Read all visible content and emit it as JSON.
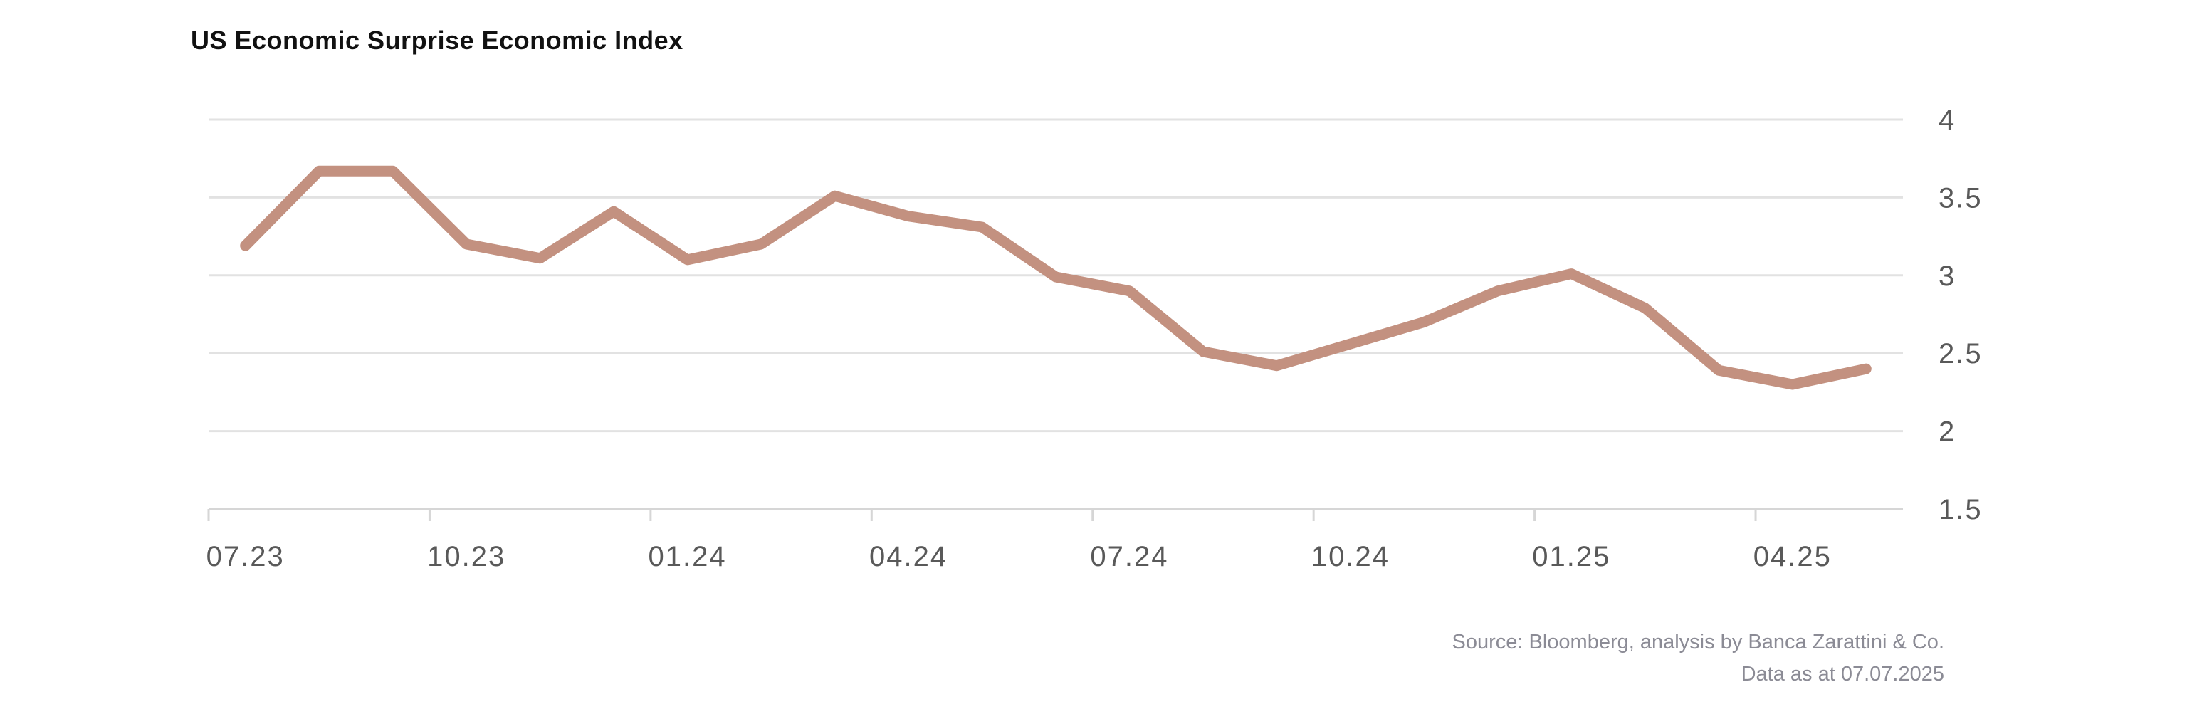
{
  "title": "US Economic Surprise Economic Index",
  "source": {
    "line1": "Source: Bloomberg, analysis by Banca Zarattini & Co.",
    "line2": "Data as at 07.07.2025"
  },
  "colors": {
    "line": "#C39180",
    "gridline": "#E2E2E2",
    "axis_line": "#D6D6D6",
    "tick_mark": "#D6D6D6",
    "axis_label": "#595959",
    "title_text": "#111111",
    "source_text": "#8B8B95",
    "background": "#FFFFFF"
  },
  "chart_data": {
    "type": "line",
    "title": "US Economic Surprise Economic Index",
    "categories": [
      "07.23",
      "08.23",
      "09.23",
      "10.23",
      "11.23",
      "12.23",
      "01.24",
      "02.24",
      "03.24",
      "04.24",
      "05.24",
      "06.24",
      "07.24",
      "08.24",
      "09.24",
      "10.24",
      "11.24",
      "12.24",
      "01.25",
      "02.25",
      "03.25",
      "04.25",
      "05.25"
    ],
    "values": [
      3.19,
      3.67,
      3.67,
      3.2,
      3.11,
      3.41,
      3.1,
      3.2,
      3.51,
      3.38,
      3.31,
      2.99,
      2.9,
      2.51,
      2.42,
      2.56,
      2.7,
      2.9,
      3.01,
      2.79,
      2.39,
      2.3,
      2.4
    ],
    "series_name": "US Economic Surprise Economic Index",
    "x_tick_labels": [
      "07.23",
      "10.23",
      "01.24",
      "04.24",
      "07.24",
      "10.24",
      "01.25",
      "04.25"
    ],
    "x_tick_every_n_months": 3,
    "y_tick_labels": [
      "4",
      "3.5",
      "3",
      "2.5",
      "2",
      "1.5"
    ],
    "y_tick_values": [
      4,
      3.5,
      3,
      2.5,
      2,
      1.5
    ],
    "ylim": [
      1.5,
      4
    ],
    "grid": "horizontal-only",
    "y_axis_side": "right",
    "legend": "none",
    "xlabel": "",
    "ylabel": ""
  }
}
